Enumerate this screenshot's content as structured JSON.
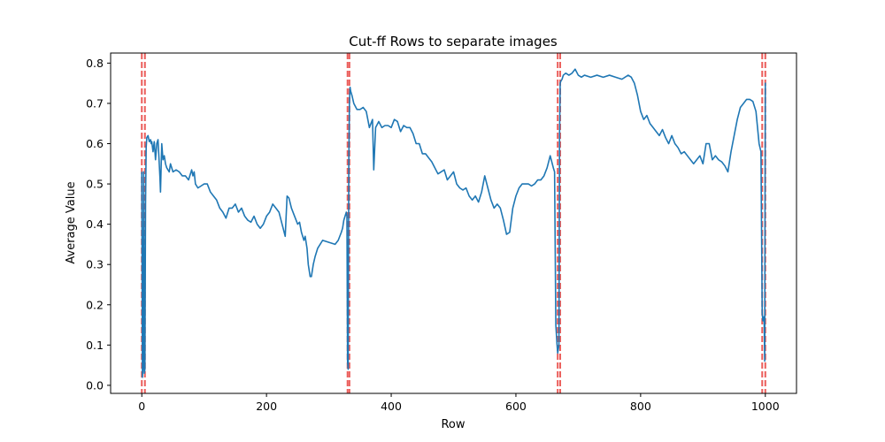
{
  "chart_data": {
    "type": "line",
    "title": "Cut-ff Rows to separate images",
    "xlabel": "Row",
    "ylabel": "Average Value",
    "xlim": [
      -50,
      1050
    ],
    "ylim": [
      -0.02,
      0.825
    ],
    "x_ticks": [
      0,
      200,
      400,
      600,
      800,
      1000
    ],
    "x_tick_labels": [
      "0",
      "200",
      "400",
      "600",
      "800",
      "1000"
    ],
    "y_ticks": [
      0.0,
      0.1,
      0.2,
      0.3,
      0.4,
      0.5,
      0.6,
      0.7,
      0.8
    ],
    "y_tick_labels": [
      "0.0",
      "0.1",
      "0.2",
      "0.3",
      "0.4",
      "0.5",
      "0.6",
      "0.7",
      "0.8"
    ],
    "grid": false,
    "line_color": "#1f77b4",
    "cutoff_color": "#e8433f",
    "cutoff_rows": [
      0,
      5,
      330,
      333,
      667,
      671,
      995,
      1000
    ],
    "series": [
      {
        "x": [
          0,
          1,
          2,
          3,
          4,
          5,
          6,
          7,
          8,
          10,
          12,
          14,
          15,
          16,
          18,
          20,
          22,
          24,
          26,
          28,
          29,
          30,
          32,
          34,
          36,
          38,
          40,
          42,
          44,
          46,
          48,
          50,
          55,
          60,
          65,
          70,
          75,
          80,
          82,
          84,
          86,
          90,
          95,
          100,
          105,
          110,
          115,
          120,
          125,
          130,
          135,
          140,
          145,
          150,
          155,
          160,
          165,
          170,
          175,
          180,
          185,
          190,
          195,
          200,
          205,
          210,
          215,
          220,
          225,
          230,
          233,
          236,
          240,
          245,
          250,
          253,
          256,
          260,
          262,
          265,
          267,
          270,
          272,
          275,
          278,
          282,
          290,
          300,
          310,
          315,
          320,
          322,
          324,
          326,
          328,
          329,
          330,
          331,
          332,
          333,
          334,
          335,
          337,
          340,
          345,
          350,
          355,
          360,
          365,
          370,
          372,
          375,
          380,
          385,
          390,
          395,
          400,
          405,
          410,
          415,
          420,
          425,
          430,
          435,
          440,
          445,
          450,
          455,
          460,
          465,
          470,
          475,
          480,
          485,
          490,
          495,
          500,
          505,
          510,
          515,
          520,
          525,
          530,
          535,
          540,
          545,
          550,
          555,
          560,
          565,
          570,
          575,
          580,
          585,
          590,
          595,
          600,
          605,
          610,
          615,
          620,
          625,
          630,
          635,
          640,
          645,
          650,
          655,
          660,
          662,
          664,
          666,
          667,
          668,
          669,
          670,
          671,
          672,
          674,
          676,
          680,
          685,
          690,
          695,
          700,
          705,
          710,
          720,
          730,
          740,
          750,
          760,
          770,
          780,
          785,
          790,
          795,
          800,
          805,
          810,
          815,
          820,
          825,
          830,
          835,
          840,
          845,
          850,
          855,
          860,
          865,
          870,
          875,
          880,
          885,
          890,
          895,
          900,
          905,
          910,
          915,
          920,
          925,
          930,
          935,
          940,
          945,
          950,
          955,
          960,
          965,
          970,
          975,
          980,
          985,
          990,
          993,
          995,
          996,
          997,
          998,
          999,
          1000,
          1001
        ],
        "y": [
          0.53,
          0.02,
          0.05,
          0.53,
          0.03,
          0.04,
          0.45,
          0.59,
          0.615,
          0.62,
          0.605,
          0.61,
          0.6,
          0.605,
          0.58,
          0.605,
          0.56,
          0.6,
          0.61,
          0.55,
          0.52,
          0.48,
          0.6,
          0.56,
          0.57,
          0.55,
          0.54,
          0.535,
          0.53,
          0.55,
          0.54,
          0.53,
          0.535,
          0.53,
          0.52,
          0.52,
          0.51,
          0.535,
          0.52,
          0.53,
          0.5,
          0.49,
          0.495,
          0.5,
          0.5,
          0.48,
          0.47,
          0.46,
          0.44,
          0.43,
          0.415,
          0.44,
          0.44,
          0.45,
          0.43,
          0.44,
          0.42,
          0.41,
          0.405,
          0.42,
          0.4,
          0.39,
          0.4,
          0.42,
          0.43,
          0.45,
          0.44,
          0.43,
          0.4,
          0.37,
          0.47,
          0.465,
          0.44,
          0.42,
          0.4,
          0.405,
          0.38,
          0.36,
          0.37,
          0.34,
          0.3,
          0.27,
          0.27,
          0.3,
          0.32,
          0.34,
          0.36,
          0.355,
          0.35,
          0.36,
          0.38,
          0.39,
          0.41,
          0.42,
          0.43,
          0.42,
          0.06,
          0.04,
          0.55,
          0.7,
          0.74,
          0.73,
          0.72,
          0.7,
          0.685,
          0.685,
          0.69,
          0.68,
          0.64,
          0.66,
          0.535,
          0.64,
          0.655,
          0.64,
          0.645,
          0.645,
          0.64,
          0.66,
          0.655,
          0.63,
          0.645,
          0.64,
          0.64,
          0.625,
          0.6,
          0.6,
          0.575,
          0.575,
          0.565,
          0.555,
          0.54,
          0.525,
          0.53,
          0.535,
          0.51,
          0.52,
          0.53,
          0.5,
          0.49,
          0.485,
          0.49,
          0.47,
          0.46,
          0.47,
          0.455,
          0.48,
          0.52,
          0.49,
          0.46,
          0.44,
          0.45,
          0.44,
          0.41,
          0.375,
          0.38,
          0.44,
          0.47,
          0.49,
          0.5,
          0.5,
          0.5,
          0.495,
          0.5,
          0.51,
          0.51,
          0.52,
          0.54,
          0.57,
          0.54,
          0.53,
          0.15,
          0.1,
          0.08,
          0.09,
          0.1,
          0.62,
          0.75,
          0.755,
          0.76,
          0.77,
          0.775,
          0.77,
          0.775,
          0.785,
          0.77,
          0.765,
          0.77,
          0.765,
          0.77,
          0.765,
          0.77,
          0.765,
          0.76,
          0.77,
          0.765,
          0.75,
          0.72,
          0.68,
          0.66,
          0.67,
          0.65,
          0.64,
          0.63,
          0.62,
          0.635,
          0.615,
          0.6,
          0.62,
          0.6,
          0.59,
          0.575,
          0.58,
          0.57,
          0.56,
          0.55,
          0.56,
          0.57,
          0.55,
          0.6,
          0.6,
          0.56,
          0.57,
          0.56,
          0.555,
          0.545,
          0.53,
          0.58,
          0.62,
          0.66,
          0.69,
          0.7,
          0.71,
          0.71,
          0.705,
          0.68,
          0.6,
          0.58,
          0.18,
          0.16,
          0.17,
          0.17,
          0.06,
          0.75,
          0.75
        ]
      }
    ]
  }
}
